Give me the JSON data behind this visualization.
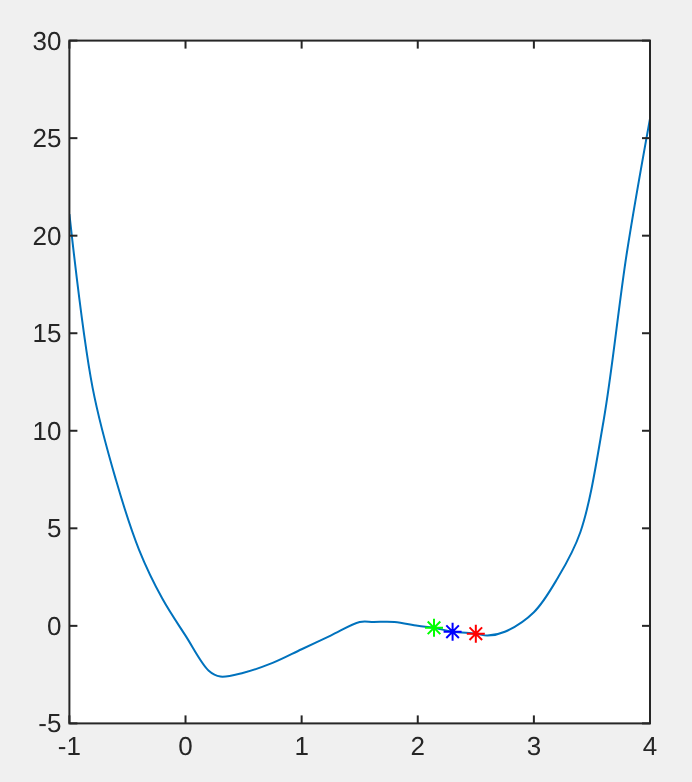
{
  "chart_data": {
    "type": "line",
    "xlim": [
      -1,
      4
    ],
    "ylim": [
      -5,
      30
    ],
    "xticks": [
      -1,
      0,
      1,
      2,
      3,
      4
    ],
    "yticks": [
      -5,
      0,
      5,
      10,
      15,
      20,
      25,
      30
    ],
    "grid": false,
    "series": [
      {
        "color": "#0072bd",
        "x": [
          -1,
          -0.8,
          -0.6,
          -0.4,
          -0.2,
          0,
          0.2,
          0.3,
          0.5,
          0.75,
          1,
          1.25,
          1.5,
          1.62,
          1.8,
          2,
          2.14,
          2.3,
          2.5,
          2.6,
          2.75,
          3,
          3.2,
          3.4,
          3.6,
          3.8,
          4
        ],
        "values": [
          21.1,
          12.2,
          7.5,
          3.9,
          1.4,
          -0.5,
          -2.3,
          -2.6,
          -2.4,
          -1.9,
          -1.2,
          -0.5,
          0.2,
          0.2,
          0.2,
          0,
          -0.1,
          -0.3,
          -0.4,
          -0.5,
          -0.3,
          0.7,
          2.4,
          4.8,
          10.5,
          19.1,
          26
        ]
      },
      {
        "type": "scatter",
        "marker": "cross",
        "color": "#00ff00",
        "x": [
          2.14
        ],
        "values": [
          -0.1
        ]
      },
      {
        "type": "scatter",
        "marker": "cross",
        "color": "#0000ff",
        "x": [
          2.3
        ],
        "values": [
          -0.3
        ]
      },
      {
        "type": "scatter",
        "marker": "cross",
        "color": "#ff0000",
        "x": [
          2.5
        ],
        "values": [
          -0.4
        ]
      }
    ]
  }
}
